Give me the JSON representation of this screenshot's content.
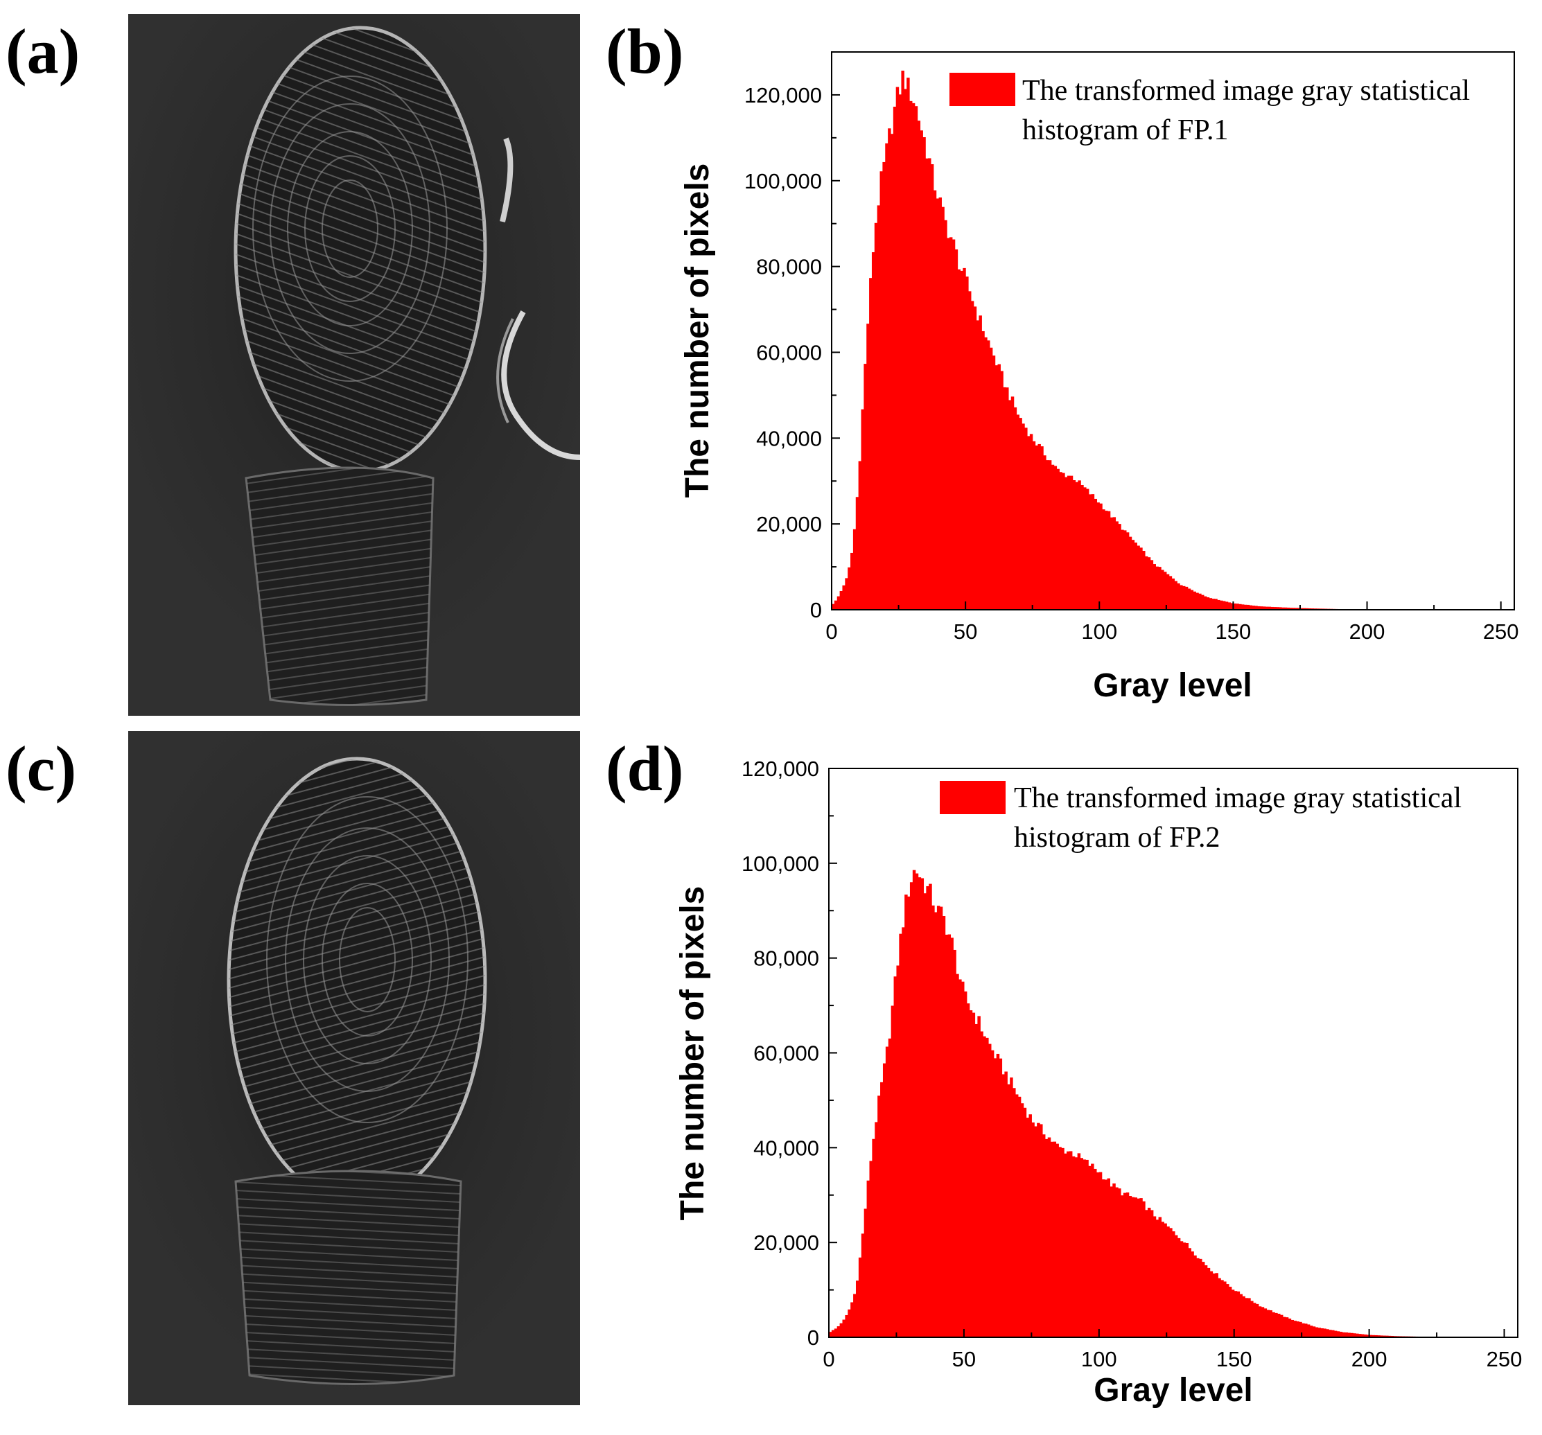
{
  "panels": {
    "a": {
      "label": "(a)"
    },
    "b": {
      "label": "(b)"
    },
    "c": {
      "label": "(c)"
    },
    "d": {
      "label": "(d)"
    }
  },
  "colors": {
    "bars": "#ff0000",
    "photo_bg": "#262626"
  },
  "chart_data": [
    {
      "id": "b",
      "type": "bar",
      "title": "",
      "xlabel": "Gray level",
      "ylabel": "The number of pixels",
      "xlim": [
        0,
        255
      ],
      "ylim": [
        0,
        130000
      ],
      "xticks": [
        0,
        50,
        100,
        150,
        200,
        250
      ],
      "xtick_labels": [
        "0",
        "50",
        "100",
        "150",
        "200",
        "250"
      ],
      "yticks": [
        0,
        20000,
        40000,
        60000,
        80000,
        100000,
        120000
      ],
      "ytick_labels": [
        "0",
        "20,000",
        "40,000",
        "60,000",
        "80,000",
        "100,000",
        "120,000"
      ],
      "legend": [
        "The transformed image gray statistical",
        "histogram of FP.1"
      ],
      "legend_position": "top-right",
      "grid": false,
      "series": [
        {
          "name": "The transformed image gray statistical histogram of FP.1",
          "x": [
            0,
            2,
            4,
            6,
            8,
            10,
            12,
            14,
            16,
            18,
            20,
            22,
            24,
            26,
            27,
            28,
            30,
            32,
            34,
            36,
            38,
            40,
            42,
            45,
            48,
            50,
            55,
            60,
            65,
            70,
            75,
            80,
            85,
            90,
            95,
            100,
            110,
            120,
            130,
            140,
            150,
            160,
            170,
            180,
            190,
            200,
            210,
            220,
            230,
            240,
            250,
            255
          ],
          "values": [
            1000,
            2500,
            5000,
            8000,
            15000,
            30000,
            52000,
            72000,
            88000,
            98000,
            105000,
            112000,
            118000,
            123000,
            125000,
            122000,
            120000,
            116000,
            111000,
            106000,
            100000,
            96000,
            91000,
            86000,
            80000,
            77000,
            68000,
            60000,
            52000,
            45000,
            40000,
            36000,
            32000,
            31000,
            28000,
            25000,
            18000,
            11000,
            6000,
            3000,
            1500,
            800,
            500,
            300,
            150,
            80,
            40,
            20,
            10,
            5,
            0,
            0
          ]
        }
      ]
    },
    {
      "id": "d",
      "type": "bar",
      "title": "",
      "xlabel": "Gray level",
      "ylabel": "The number of pixels",
      "xlim": [
        0,
        255
      ],
      "ylim": [
        0,
        120000
      ],
      "xticks": [
        0,
        50,
        100,
        150,
        200,
        250
      ],
      "xtick_labels": [
        "0",
        "50",
        "100",
        "150",
        "200",
        "250"
      ],
      "yticks": [
        0,
        20000,
        40000,
        60000,
        80000,
        100000,
        120000
      ],
      "ytick_labels": [
        "0",
        "20,000",
        "40,000",
        "60,000",
        "80,000",
        "100,000",
        "120,000"
      ],
      "legend": [
        "The transformed image gray statistical",
        "histogram of FP.2"
      ],
      "legend_position": "top-right",
      "grid": false,
      "series": [
        {
          "name": "The transformed image gray statistical histogram of FP.2",
          "x": [
            0,
            3,
            6,
            8,
            10,
            12,
            14,
            16,
            18,
            20,
            22,
            24,
            26,
            28,
            30,
            32,
            34,
            36,
            38,
            40,
            42,
            44,
            46,
            48,
            50,
            55,
            60,
            65,
            70,
            75,
            80,
            85,
            90,
            95,
            100,
            105,
            110,
            115,
            120,
            130,
            140,
            150,
            160,
            170,
            180,
            190,
            200,
            210,
            220,
            230,
            240,
            250,
            255
          ],
          "values": [
            1000,
            2000,
            4000,
            6500,
            10000,
            19000,
            30000,
            40000,
            48000,
            55000,
            62000,
            72000,
            82000,
            90000,
            96000,
            99000,
            97000,
            95000,
            93000,
            90000,
            89000,
            86000,
            82000,
            77000,
            72000,
            67000,
            61000,
            56000,
            51000,
            46000,
            43000,
            40000,
            39000,
            37000,
            35000,
            32000,
            30000,
            29000,
            26000,
            21000,
            15000,
            10000,
            6500,
            4000,
            2200,
            1100,
            500,
            250,
            120,
            60,
            20,
            0,
            0
          ]
        }
      ]
    }
  ]
}
